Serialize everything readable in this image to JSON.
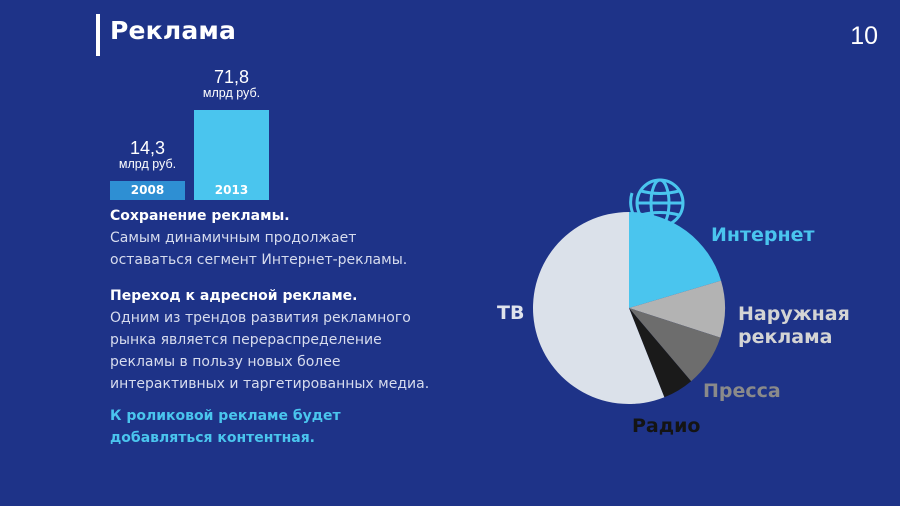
{
  "header": {
    "title": "Реклама",
    "page_number": "10"
  },
  "chart_data": [
    {
      "type": "bar",
      "categories": [
        "2008",
        "2013"
      ],
      "values": [
        14.3,
        71.8
      ],
      "value_labels": [
        "14,3",
        "71,8"
      ],
      "unit_label": "млрд руб.",
      "ylim": [
        0,
        71.8
      ],
      "color": "#4ac5ee"
    },
    {
      "type": "pie",
      "slices": [
        {
          "label": "Интернет",
          "value": 20.4,
          "color": "#4ac5ee",
          "label_color": "#4ac5ee"
        },
        {
          "label": "Наружная реклама",
          "label_lines": [
            "Наружная",
            "реклама"
          ],
          "value": 9.6,
          "color": "#b3b3b3",
          "label_color": "#d4d4d4"
        },
        {
          "label": "Пресса",
          "value": 8.8,
          "color": "#6d6d6d",
          "label_color": "#8a8a8a"
        },
        {
          "label": "Радио",
          "value": 5.2,
          "color": "#1a1a1a",
          "label_color": "#141414"
        },
        {
          "label": "ТВ",
          "value": 56.0,
          "color": "#dbe1ea",
          "label_color": "#dfe3ec"
        }
      ],
      "start_angle_deg": 0,
      "globe_icon": "globe-icon"
    }
  ],
  "text": {
    "p1_head": "Сохранение рекламы.",
    "p1_lines": [
      "Самым динамичным продолжает",
      "оставаться сегмент Интернет-рекламы."
    ],
    "p2_head": "Переход к адресной рекламе.",
    "p2_lines": [
      "Одним из трендов развития рекламного",
      "рынка является перераспределение",
      "рекламы в пользу новых более",
      "интерактивных и таргетированных медиа."
    ],
    "accent_lines": [
      "К роликовой рекламе будет",
      "добавляться контентная."
    ],
    "accent_color": "#4ac5ee"
  }
}
